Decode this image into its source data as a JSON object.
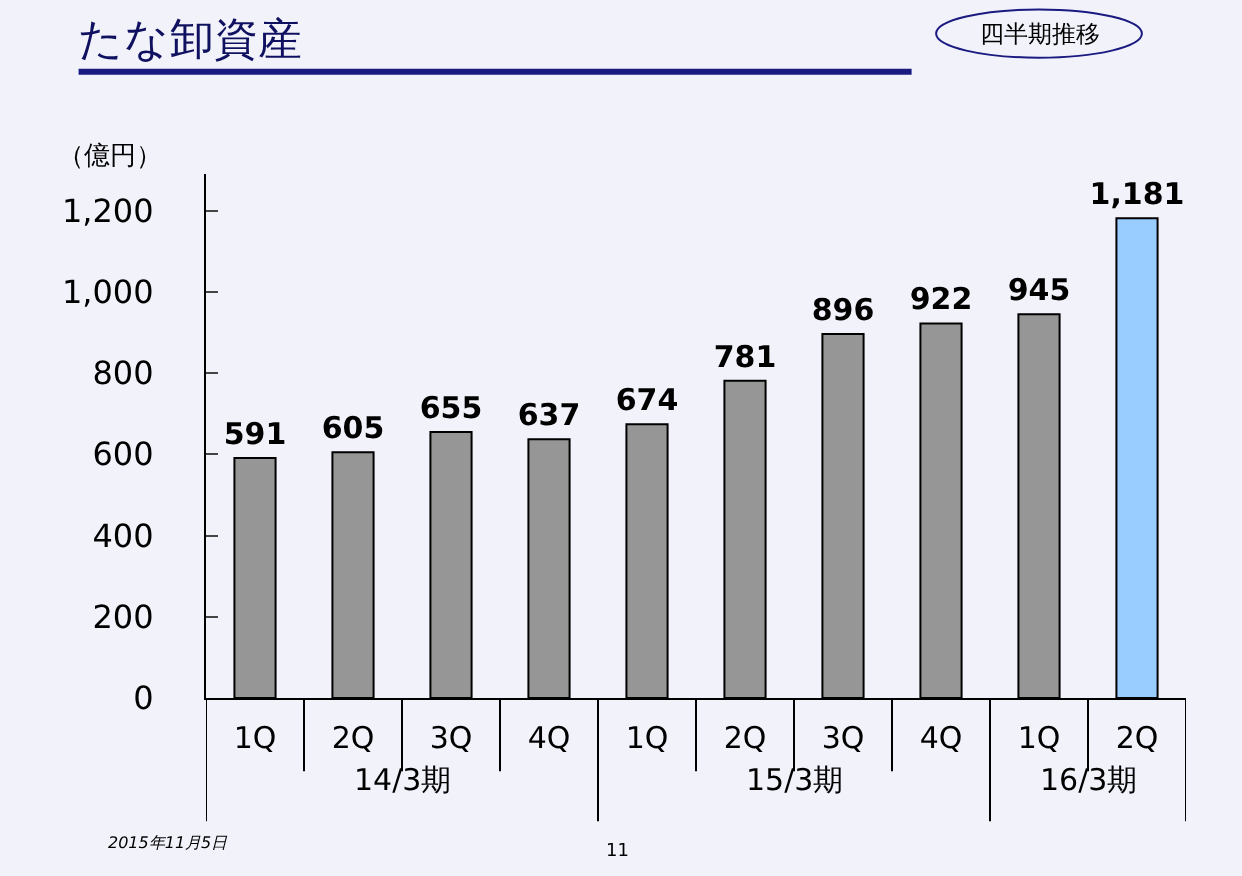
{
  "chart_data": {
    "type": "bar",
    "title": "たな卸資産",
    "ylabel": "（億円）",
    "categories": [
      "1Q",
      "2Q",
      "3Q",
      "4Q",
      "1Q",
      "2Q",
      "3Q",
      "4Q",
      "1Q",
      "2Q"
    ],
    "values": [
      591,
      605,
      655,
      637,
      674,
      781,
      896,
      922,
      945,
      1181
    ],
    "colors": [
      "#969696",
      "#969696",
      "#969696",
      "#969696",
      "#969696",
      "#969696",
      "#969696",
      "#969696",
      "#969696",
      "#99ccff"
    ],
    "ylim": [
      0,
      1290
    ],
    "yticks": [
      0,
      {
        "value": 200,
        "label": "200"
      },
      {
        "value": 400,
        "label": "400"
      },
      {
        "value": 600,
        "label": "600"
      },
      {
        "value": 800,
        "label": "800"
      },
      {
        "value": 1000,
        "label": "1,000"
      },
      {
        "value": 1200,
        "label": "1,200"
      }
    ],
    "value_labels": [
      "591",
      "605",
      "655",
      "637",
      "674",
      "781",
      "896",
      "922",
      "945",
      "1,181"
    ],
    "grid": false,
    "annotations": [
      "14/3期",
      "15/3期",
      "16/3期",
      "四半期推移",
      "2015年11月5日",
      "11"
    ]
  }
}
